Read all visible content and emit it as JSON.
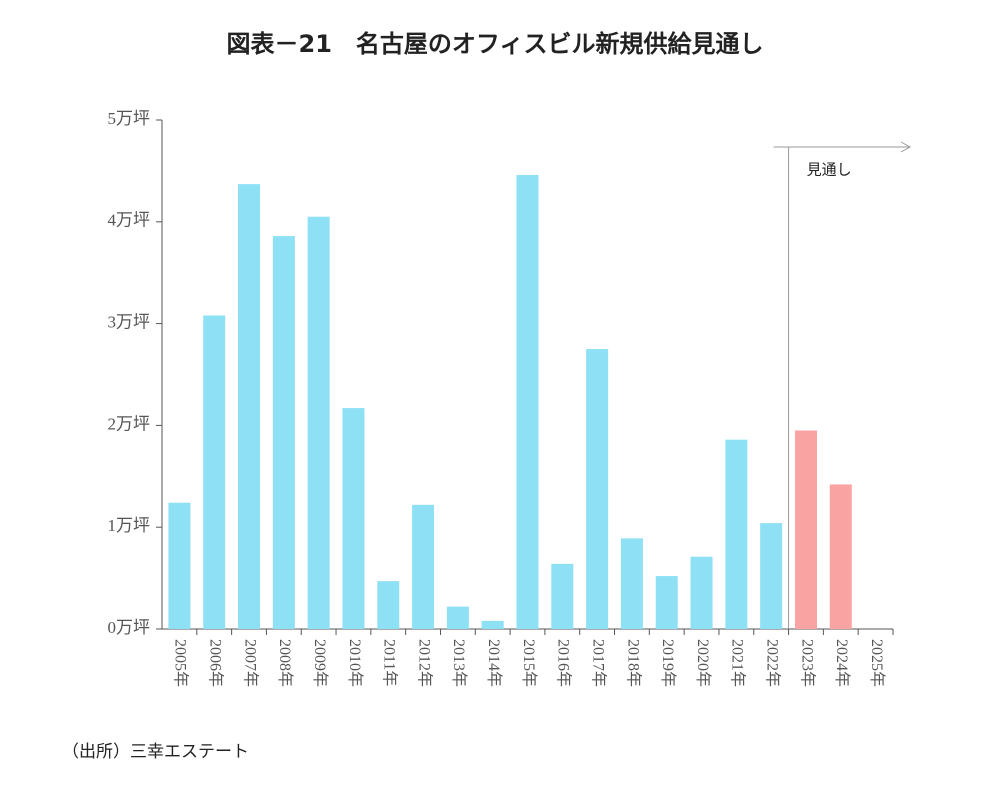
{
  "chart_data": {
    "type": "bar",
    "title": "図表－21　名古屋のオフィスビル新規供給見通し",
    "categories": [
      "2005年",
      "2006年",
      "2007年",
      "2008年",
      "2009年",
      "2010年",
      "2011年",
      "2012年",
      "2013年",
      "2014年",
      "2015年",
      "2016年",
      "2017年",
      "2018年",
      "2019年",
      "2020年",
      "2021年",
      "2022年",
      "2023年",
      "2024年",
      "2025年"
    ],
    "values": [
      1.24,
      3.08,
      4.37,
      3.86,
      4.05,
      2.17,
      0.47,
      1.22,
      0.22,
      0.08,
      4.46,
      0.64,
      2.75,
      0.89,
      0.52,
      0.71,
      1.86,
      1.04,
      1.95,
      1.42,
      null
    ],
    "colors": [
      "#8ee0f5",
      "#8ee0f5",
      "#8ee0f5",
      "#8ee0f5",
      "#8ee0f5",
      "#8ee0f5",
      "#8ee0f5",
      "#8ee0f5",
      "#8ee0f5",
      "#8ee0f5",
      "#8ee0f5",
      "#8ee0f5",
      "#8ee0f5",
      "#8ee0f5",
      "#8ee0f5",
      "#8ee0f5",
      "#8ee0f5",
      "#8ee0f5",
      "#f9a3a3",
      "#f9a3a3",
      "#f9a3a3"
    ],
    "ylim": [
      0,
      5
    ],
    "yticks": [
      {
        "value": 0,
        "label": "0万坪"
      },
      {
        "value": 1,
        "label": "1万坪"
      },
      {
        "value": 2,
        "label": "2万坪"
      },
      {
        "value": 3,
        "label": "3万坪"
      },
      {
        "value": 4,
        "label": "4万坪"
      },
      {
        "value": 5,
        "label": "5万坪"
      }
    ],
    "annotation": {
      "text": "見通し",
      "category": "2023年"
    },
    "source": "（出所）三幸エステート"
  }
}
